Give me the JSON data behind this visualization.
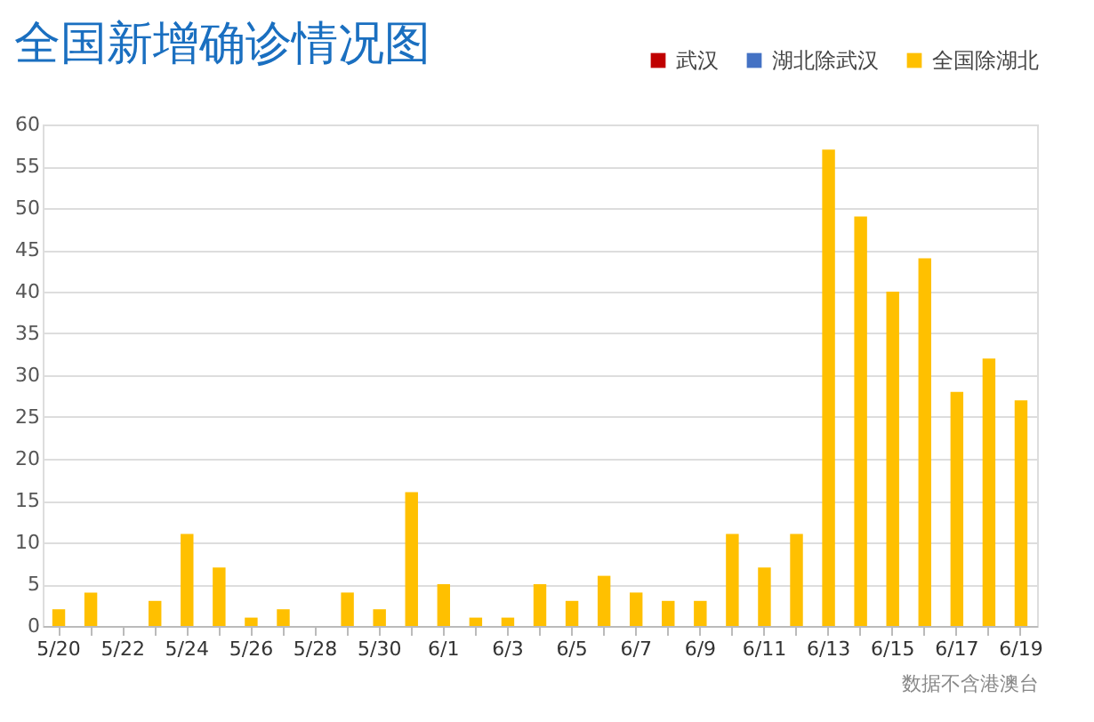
{
  "chart_data": {
    "type": "bar",
    "title": "全国新增确诊情况图",
    "categories": [
      "5/20",
      null,
      "5/22",
      null,
      "5/24",
      null,
      "5/26",
      null,
      "5/28",
      null,
      "5/30",
      null,
      "6/1",
      null,
      "6/3",
      null,
      "6/5",
      null,
      "6/7",
      null,
      "6/9",
      null,
      "6/11",
      null,
      "6/13",
      null,
      "6/15",
      null,
      "6/17",
      null,
      "6/19"
    ],
    "series": [
      {
        "name": "武汉",
        "color": "#c00000",
        "values": [
          0,
          0,
          0,
          0,
          0,
          0,
          0,
          0,
          0,
          0,
          0,
          0,
          0,
          0,
          0,
          0,
          0,
          0,
          0,
          0,
          0,
          0,
          0,
          0,
          0,
          0,
          0,
          0,
          0,
          0,
          0
        ]
      },
      {
        "name": "湖北除武汉",
        "color": "#4472c4",
        "values": [
          0,
          0,
          0,
          0,
          0,
          0,
          0,
          0,
          0,
          0,
          0,
          0,
          0,
          0,
          0,
          0,
          0,
          0,
          0,
          0,
          0,
          0,
          0,
          0,
          0,
          0,
          0,
          0,
          0,
          0,
          0
        ]
      },
      {
        "name": "全国除湖北",
        "color": "#ffc000",
        "values": [
          2,
          4,
          0,
          3,
          11,
          7,
          1,
          2,
          0,
          4,
          2,
          16,
          5,
          1,
          1,
          5,
          3,
          6,
          4,
          3,
          3,
          11,
          7,
          11,
          57,
          49,
          40,
          44,
          28,
          32,
          27
        ]
      }
    ],
    "ylim": [
      0,
      60
    ],
    "yticks": [
      0,
      5,
      10,
      15,
      20,
      25,
      30,
      35,
      40,
      45,
      50,
      55,
      60
    ],
    "grid": "y",
    "legend": "top right",
    "annotations": [
      "数据不含港澳台"
    ]
  }
}
